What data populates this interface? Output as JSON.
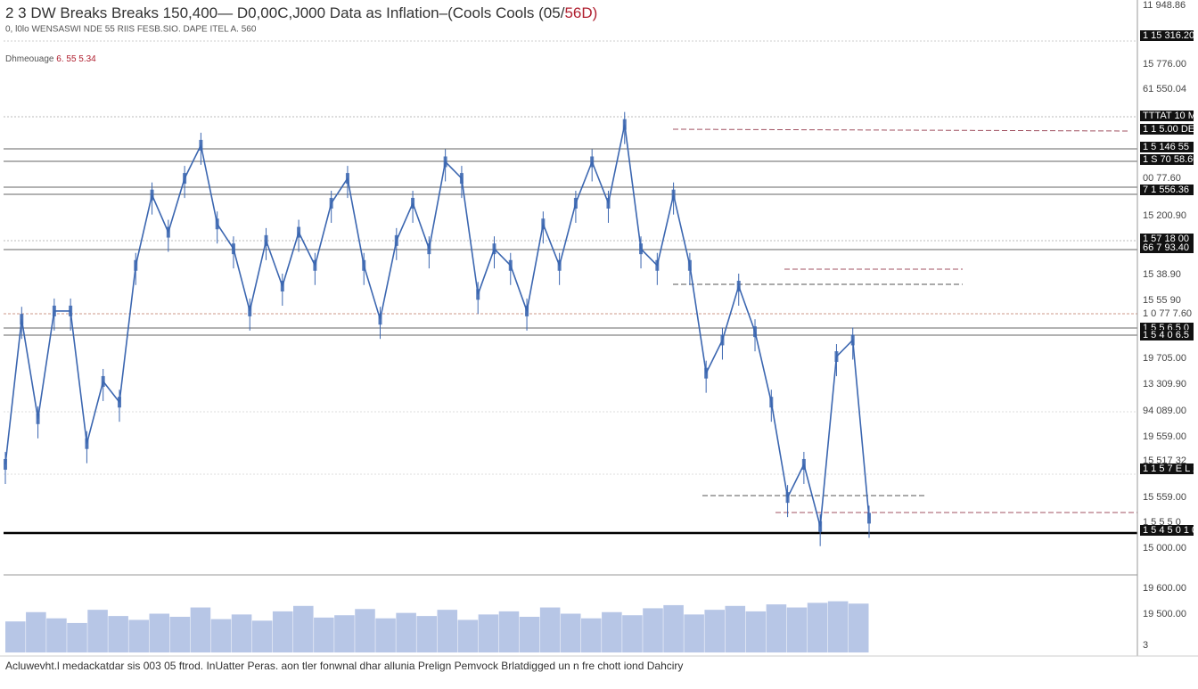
{
  "header": {
    "title": "2 3 DW Breaks Breaks 150,400— D0,00C,J000 Data as Inflation–(Cools Cools (05/",
    "title_red": "56D)",
    "subtitle": "0, l0lo WENSASWI NDE 55 RIIS FESB.SIO.  DAPE ITEL A. 560",
    "info_label": "Dhmeouage",
    "info_value": "6. 55 5.34"
  },
  "axis_labels": [
    {
      "text": "11 948.86",
      "boxed": false
    },
    {
      "text": "1 15 316.20",
      "boxed": true
    },
    {
      "text": "15 776.00",
      "boxed": false
    },
    {
      "text": "61 550.04",
      "boxed": false
    },
    {
      "text": "TTTAT 10 MG",
      "boxed": true
    },
    {
      "text": "1 1 5.00 DE",
      "boxed": true
    },
    {
      "text": "1 5 146 55",
      "boxed": true
    },
    {
      "text": "1 S 70 58.60",
      "boxed": true
    },
    {
      "text": "00 77.60",
      "boxed": false
    },
    {
      "text": "7 1 556.36",
      "boxed": true
    },
    {
      "text": "15 200.90",
      "boxed": false
    },
    {
      "text": "1 57 18 00",
      "boxed": true
    },
    {
      "text": "66 7 93.40",
      "boxed": true
    },
    {
      "text": "15 38.90",
      "boxed": false
    },
    {
      "text": "15 55 90",
      "boxed": false
    },
    {
      "text": "1 0 77 7.60",
      "boxed": false
    },
    {
      "text": "1 5 5 6.5 0",
      "boxed": true
    },
    {
      "text": "1 5 4 0 6.5",
      "boxed": true
    },
    {
      "text": "19 705.00",
      "boxed": false
    },
    {
      "text": "13 309.90",
      "boxed": false
    },
    {
      "text": "94 089.00",
      "boxed": false
    },
    {
      "text": "19 559.00",
      "boxed": false
    },
    {
      "text": "15 517 32",
      "boxed": false
    },
    {
      "text": "1 1 5 7 E L 1 6 1",
      "boxed": true
    },
    {
      "text": "15 559.00",
      "boxed": false
    },
    {
      "text": "1 5 5 5 0",
      "boxed": false
    },
    {
      "text": "1 5 4 5 0 1 0 0",
      "boxed": true
    },
    {
      "text": "15 000.00",
      "boxed": false
    },
    {
      "text": "19 600.00",
      "boxed": false
    },
    {
      "text": "19 500.00",
      "boxed": false
    },
    {
      "text": "3",
      "boxed": false
    }
  ],
  "chart_data": {
    "type": "line",
    "color": "#3b66b0",
    "values": [
      17,
      52,
      28,
      54,
      54,
      22,
      37,
      32,
      65,
      82,
      73,
      86,
      94,
      75,
      69,
      54,
      71,
      60,
      73,
      65,
      80,
      86,
      65,
      52,
      71,
      80,
      69,
      90,
      86,
      58,
      69,
      65,
      54,
      75,
      65,
      80,
      90,
      80,
      99,
      69,
      65,
      82,
      65,
      39,
      47,
      60,
      49,
      32,
      9,
      17,
      2,
      43,
      47,
      4
    ],
    "ylim": [
      0,
      100
    ],
    "volume": {
      "color": "#b7c6e6",
      "values": [
        40,
        52,
        44,
        38,
        55,
        47,
        42,
        50,
        46,
        58,
        43,
        49,
        41,
        53,
        60,
        45,
        48,
        56,
        44,
        51,
        47,
        55,
        42,
        49,
        53,
        46,
        58,
        50,
        44,
        52,
        48,
        57,
        61,
        49,
        55,
        60,
        53,
        62,
        58,
        64,
        66,
        63
      ],
      "ylim": [
        0,
        100
      ]
    }
  },
  "footer": "Acluwevht.l medackatdar sis 003 05 ftrod. InUatter Peras. aon tler fonwnal dhar allunia Prelign Pemvock Brlatdigged un n fre chott iond Dahciry"
}
